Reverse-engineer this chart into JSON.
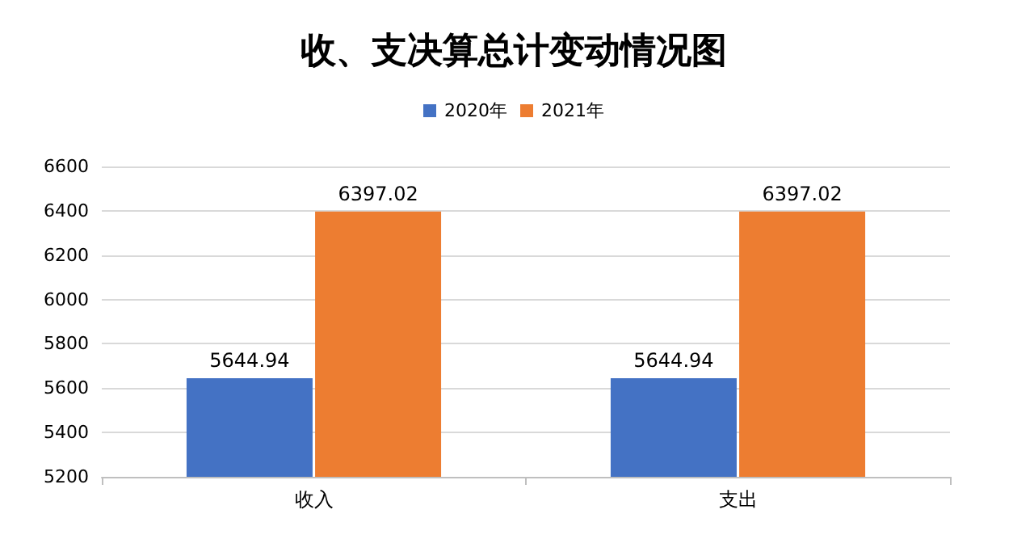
{
  "chart_data": {
    "type": "bar",
    "title": "收、支决算总计变动情况图",
    "categories": [
      "收入",
      "支出"
    ],
    "series": [
      {
        "name": "2020年",
        "color": "#4472c4",
        "values": [
          5644.94,
          5644.94
        ]
      },
      {
        "name": "2021年",
        "color": "#ed7d31",
        "values": [
          6397.02,
          6397.02
        ]
      }
    ],
    "ylim": [
      5200,
      6600
    ],
    "yticks": [
      5200,
      5400,
      5600,
      5800,
      6000,
      6200,
      6400,
      6600
    ],
    "grid": "y",
    "legend": "top",
    "data_labels": true
  }
}
